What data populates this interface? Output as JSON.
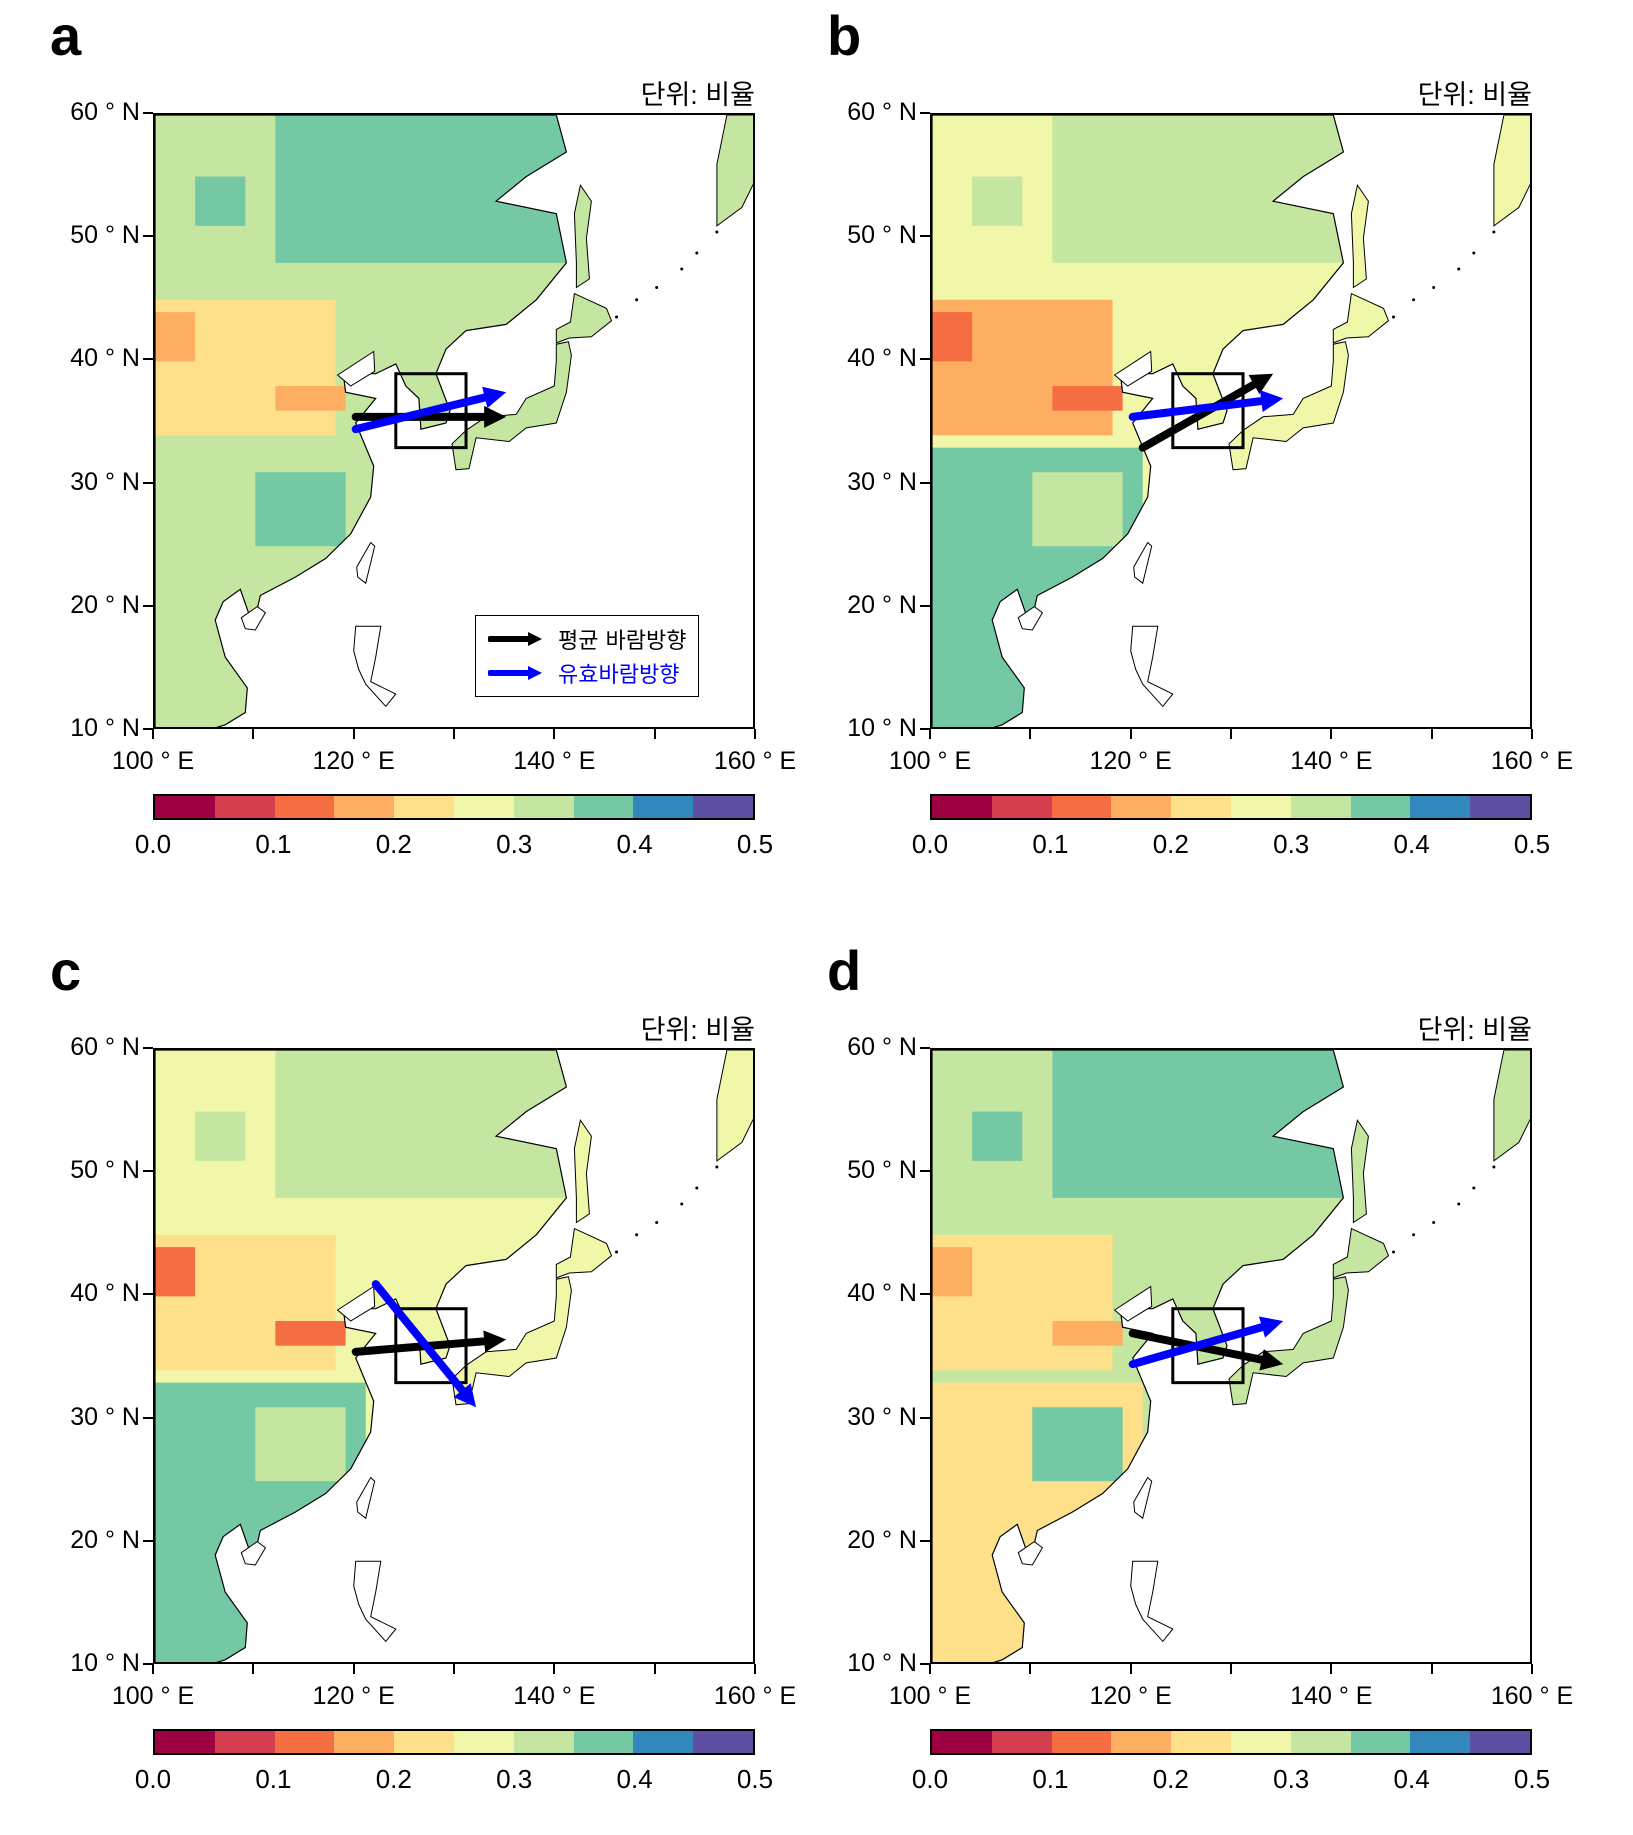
{
  "colorbar": {
    "colors": [
      "#9e0142",
      "#d53e4f",
      "#f46d43",
      "#fdae61",
      "#fee08b",
      "#f1f7a8",
      "#c4e6a0",
      "#74c8a3",
      "#3288bd",
      "#5e4fa2"
    ],
    "tick_labels": [
      "0.0",
      "0.1",
      "0.2",
      "0.3",
      "0.4",
      "0.5"
    ]
  },
  "axes": {
    "lat_labels": [
      "60 ° N",
      "50 ° N",
      "40 ° N",
      "30 ° N",
      "20 ° N",
      "10 ° N"
    ],
    "lon_labels": [
      "100 ° E",
      "120 ° E",
      "140 ° E",
      "160 ° E"
    ],
    "extent": {
      "lon": [
        100,
        160
      ],
      "lat": [
        10,
        60
      ]
    }
  },
  "legend": {
    "mean_label": "평균 바람방향",
    "effective_label": "유효바람방향",
    "mean_color": "#000000",
    "effective_color": "#0000ff"
  },
  "panels": [
    {
      "letter": "a",
      "unit_label": "단위: 비율",
      "has_legend": true,
      "colors": {
        "base": "#c4e6a0",
        "north": "#74c8a3",
        "west": "#fee08b",
        "south": "#c4e6a0",
        "accent": "#fdae61"
      },
      "mean_wind": {
        "from": [
          120,
          35.5
        ],
        "to": [
          135,
          35.5
        ]
      },
      "effective_wind": {
        "from": [
          120,
          34.5
        ],
        "to": [
          135,
          37.5
        ]
      }
    },
    {
      "letter": "b",
      "unit_label": "단위: 비율",
      "has_legend": false,
      "colors": {
        "base": "#f1f7a8",
        "north": "#c4e6a0",
        "west": "#fdae61",
        "south": "#74c8a3",
        "accent": "#f46d43"
      },
      "mean_wind": {
        "from": [
          121,
          33
        ],
        "to": [
          134,
          39
        ]
      },
      "effective_wind": {
        "from": [
          120,
          35.5
        ],
        "to": [
          135,
          37
        ]
      }
    },
    {
      "letter": "c",
      "unit_label": "단위: 비율",
      "has_legend": false,
      "colors": {
        "base": "#f1f7a8",
        "north": "#c4e6a0",
        "west": "#fee08b",
        "south": "#74c8a3",
        "accent": "#f46d43"
      },
      "mean_wind": {
        "from": [
          120,
          35.5
        ],
        "to": [
          135,
          36.5
        ]
      },
      "effective_wind": {
        "from": [
          122,
          41
        ],
        "to": [
          132,
          31
        ]
      }
    },
    {
      "letter": "d",
      "unit_label": "단위: 비율",
      "has_legend": false,
      "colors": {
        "base": "#c4e6a0",
        "north": "#74c8a3",
        "west": "#fee08b",
        "south": "#fee08b",
        "accent": "#fdae61"
      },
      "mean_wind": {
        "from": [
          120,
          37
        ],
        "to": [
          135,
          34.5
        ]
      },
      "effective_wind": {
        "from": [
          120,
          34.5
        ],
        "to": [
          135,
          38
        ]
      }
    }
  ]
}
